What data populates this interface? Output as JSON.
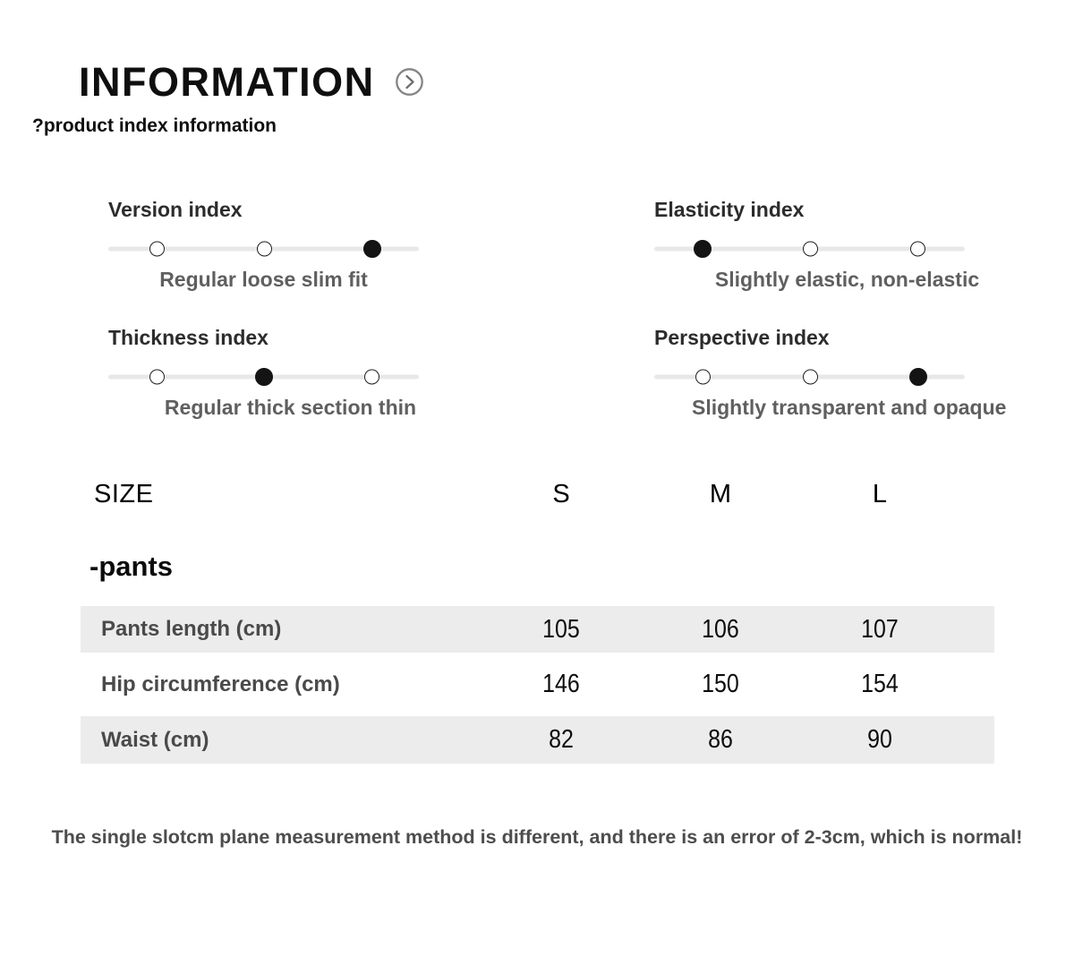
{
  "header": {
    "title": "INFORMATION",
    "icon": "circle-chevron-right-icon"
  },
  "subtitle": "?product index information",
  "indices": [
    {
      "label": "Version index",
      "dot_count": 3,
      "active_dot": 2,
      "caption": "Regular loose slim fit"
    },
    {
      "label": "Elasticity index",
      "dot_count": 3,
      "active_dot": 0,
      "caption": "Slightly elastic, non-elastic"
    },
    {
      "label": "Thickness index",
      "dot_count": 3,
      "active_dot": 1,
      "caption": "Regular thick section thin"
    },
    {
      "label": "Perspective index",
      "dot_count": 3,
      "active_dot": 2,
      "caption": "Slightly transparent and opaque"
    }
  ],
  "size_table": {
    "size_label": "SIZE",
    "columns": [
      "S",
      "M",
      "L"
    ],
    "group_label": "-pants",
    "rows": [
      {
        "label": "Pants length (cm)",
        "values": [
          "105",
          "106",
          "107"
        ]
      },
      {
        "label": "Hip circumference (cm)",
        "values": [
          "146",
          "150",
          "154"
        ]
      },
      {
        "label": "Waist (cm)",
        "values": [
          "82",
          "86",
          "90"
        ]
      }
    ]
  },
  "footer_note": "The single slotcm plane measurement method is different, and there is an error of 2-3cm, which is normal!",
  "colors": {
    "active_dot": "#141414",
    "dot_border": "#1f1f1f",
    "slider_track": "#e8e8e8",
    "row_alt_bg": "#ececec",
    "muted_text": "#5f5f5f",
    "icon_gray": "#848484"
  }
}
